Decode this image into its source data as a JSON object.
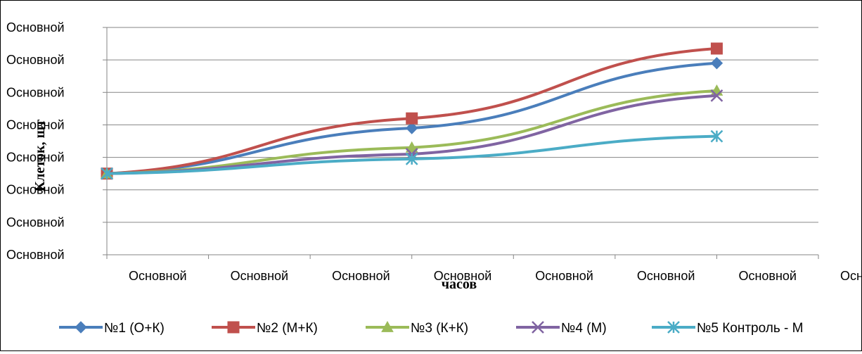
{
  "chart_data": {
    "type": "line",
    "title": "",
    "xlabel": "часов",
    "ylabel": "Клеток, шт",
    "x_tick_labels": [
      "Основной",
      "Основной",
      "Основной",
      "Основной",
      "Основной",
      "Основной",
      "Основной",
      "Основной"
    ],
    "y_tick_labels": [
      "Основной",
      "Основной",
      "Основной",
      "Основной",
      "Основной",
      "Основной",
      "Основной",
      "Основной"
    ],
    "x_range": [
      0,
      7
    ],
    "y_range": [
      0,
      7
    ],
    "grid": "horizontal",
    "legend_position": "bottom",
    "x": [
      0,
      3,
      6
    ],
    "series": [
      {
        "name": "№1 (О+К)",
        "color": "#4a7ebb",
        "marker": "diamond",
        "values": [
          2.5,
          3.9,
          5.9
        ]
      },
      {
        "name": "№2 (М+К)",
        "color": "#c0504d",
        "marker": "square",
        "values": [
          2.5,
          4.2,
          6.35
        ]
      },
      {
        "name": "№3 (К+К)",
        "color": "#9bbb59",
        "marker": "triangle",
        "values": [
          2.5,
          3.3,
          5.05
        ]
      },
      {
        "name": "№4 (М)",
        "color": "#8064a2",
        "marker": "x",
        "values": [
          2.5,
          3.1,
          4.9
        ]
      },
      {
        "name": "№5 Контроль - М",
        "color": "#4bacc6",
        "marker": "star",
        "values": [
          2.5,
          2.95,
          3.65
        ]
      }
    ]
  }
}
